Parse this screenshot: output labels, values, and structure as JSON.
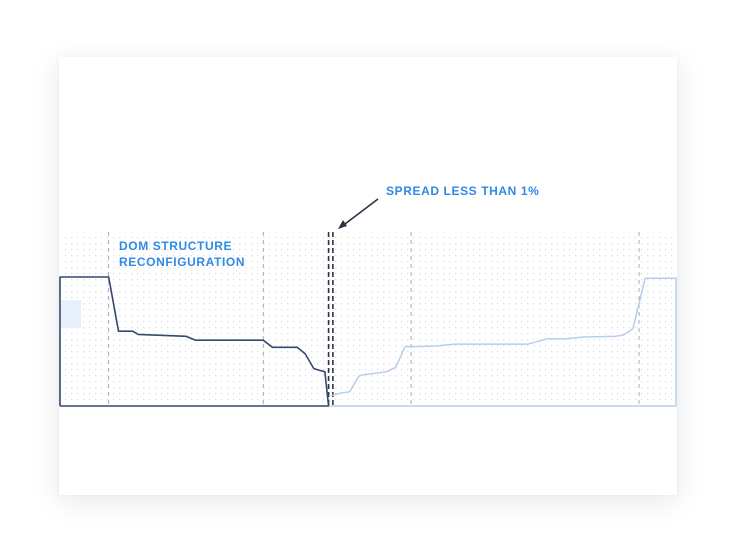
{
  "colors": {
    "dark_series": "#34496d",
    "light_series": "#b8cdec",
    "annotation": "#2f8ae6",
    "divider": "#2b3344",
    "guide": "#a7abb3",
    "grid": "#dadde2"
  },
  "annotations": {
    "dom_structure": [
      "DOM STRUCTURE",
      "RECONFIGURATION"
    ],
    "spread": "SPREAD LESS THAN 1%"
  },
  "chart_data": {
    "type": "line",
    "title": "",
    "xlabel": "",
    "ylabel": "",
    "x_ticks": "none",
    "y_ticks": "none",
    "grid": true,
    "series": [
      {
        "x": [
          0,
          0.079,
          0.095,
          0.118,
          0.127,
          0.205,
          0.22,
          0.33,
          0.345,
          0.385,
          0.398,
          0.412,
          0.43,
          0.436
        ],
        "y": [
          1.0,
          1.0,
          0.58,
          0.58,
          0.555,
          0.54,
          0.51,
          0.51,
          0.455,
          0.455,
          0.405,
          0.29,
          0.265,
          0.0
        ]
      },
      {
        "x": [
          0.44,
          0.455,
          0.47,
          0.485,
          0.49,
          0.53,
          0.545,
          0.56,
          0.575,
          0.61,
          0.64,
          0.7,
          0.73,
          0.76,
          0.79,
          0.82,
          0.85,
          0.9,
          0.915,
          0.93,
          0.95,
          1.0
        ],
        "y": [
          0.08,
          0.1,
          0.11,
          0.23,
          0.24,
          0.265,
          0.3,
          0.46,
          0.46,
          0.465,
          0.48,
          0.48,
          0.48,
          0.48,
          0.52,
          0.52,
          0.535,
          0.54,
          0.55,
          0.6,
          0.99,
          0.99
        ]
      }
    ]
  }
}
